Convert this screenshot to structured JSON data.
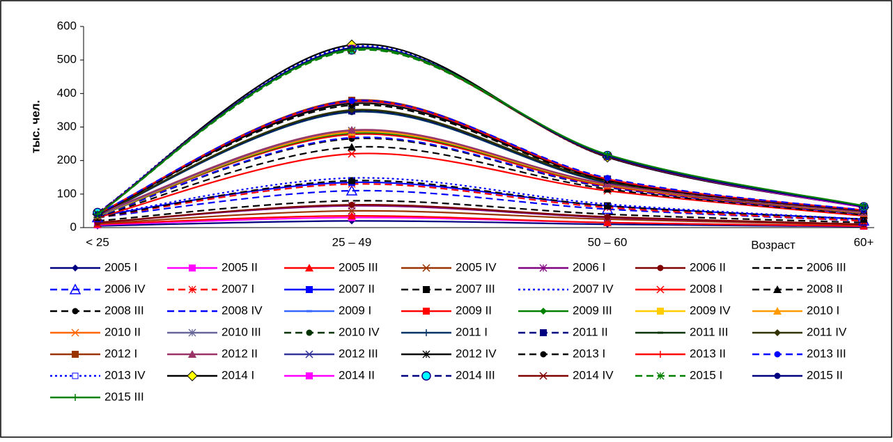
{
  "chart_data": {
    "type": "line",
    "y_label": "тыс. чел.",
    "x_label": "Возраст",
    "categories": [
      "< 25",
      "25 – 49",
      "50 – 60",
      "60+"
    ],
    "ylim": [
      0,
      600
    ],
    "yticks": [
      0,
      100,
      200,
      300,
      400,
      500,
      600
    ],
    "legend": "bottom",
    "series": [
      {
        "name": "2005 I",
        "color": "#000080",
        "dash": "solid",
        "marker": "diamond",
        "values": [
          5,
          20,
          10,
          3
        ]
      },
      {
        "name": "2005 II",
        "color": "#ff00ff",
        "dash": "solid",
        "marker": "square",
        "values": [
          8,
          30,
          15,
          4
        ]
      },
      {
        "name": "2005 III",
        "color": "#ff0000",
        "dash": "solid",
        "marker": "triangle",
        "values": [
          10,
          35,
          15,
          5
        ]
      },
      {
        "name": "2005 IV",
        "color": "#993300",
        "dash": "solid",
        "marker": "x",
        "values": [
          12,
          50,
          25,
          8
        ]
      },
      {
        "name": "2006 I",
        "color": "#800080",
        "dash": "solid",
        "marker": "asterisk",
        "values": [
          15,
          65,
          30,
          10
        ]
      },
      {
        "name": "2006 II",
        "color": "#800000",
        "dash": "solid",
        "marker": "circle",
        "values": [
          15,
          68,
          32,
          10
        ]
      },
      {
        "name": "2006 III",
        "color": "#000000",
        "dash": "dash",
        "marker": "none",
        "values": [
          20,
          80,
          40,
          15
        ]
      },
      {
        "name": "2006 IV",
        "color": "#0000ff",
        "dash": "dash",
        "marker": "triangle-open",
        "values": [
          30,
          110,
          55,
          20
        ]
      },
      {
        "name": "2007 I",
        "color": "#ff0000",
        "dash": "dash",
        "marker": "asterisk",
        "values": [
          30,
          130,
          60,
          20
        ]
      },
      {
        "name": "2007 II",
        "color": "#0000ff",
        "dash": "solid",
        "marker": "square",
        "values": [
          35,
          135,
          65,
          25
        ]
      },
      {
        "name": "2007 III",
        "color": "#000000",
        "dash": "dash",
        "marker": "square",
        "values": [
          30,
          140,
          65,
          25
        ]
      },
      {
        "name": "2007 IV",
        "color": "#0000ff",
        "dash": "dot",
        "marker": "none",
        "values": [
          35,
          148,
          70,
          25
        ]
      },
      {
        "name": "2008 I",
        "color": "#ff0000",
        "dash": "solid",
        "marker": "x",
        "values": [
          30,
          220,
          110,
          35
        ]
      },
      {
        "name": "2008 II",
        "color": "#000000",
        "dash": "dash",
        "marker": "triangle",
        "values": [
          32,
          240,
          115,
          38
        ]
      },
      {
        "name": "2008 III",
        "color": "#000000",
        "dash": "dash",
        "marker": "circle",
        "values": [
          33,
          265,
          120,
          40
        ]
      },
      {
        "name": "2008 IV",
        "color": "#0000ff",
        "dash": "dash",
        "marker": "none",
        "values": [
          33,
          268,
          121,
          40
        ]
      },
      {
        "name": "2009 I",
        "color": "#3366ff",
        "dash": "solid",
        "marker": "dash",
        "values": [
          35,
          280,
          125,
          42
        ]
      },
      {
        "name": "2009 II",
        "color": "#ff0000",
        "dash": "solid",
        "marker": "square",
        "values": [
          35,
          278,
          124,
          42
        ]
      },
      {
        "name": "2009 III",
        "color": "#008000",
        "dash": "solid",
        "marker": "diamond",
        "values": [
          35,
          282,
          127,
          43
        ]
      },
      {
        "name": "2009 IV",
        "color": "#ffcc00",
        "dash": "solid",
        "marker": "square",
        "values": [
          36,
          285,
          128,
          44
        ]
      },
      {
        "name": "2010 I",
        "color": "#ff9900",
        "dash": "solid",
        "marker": "triangle",
        "values": [
          36,
          286,
          128,
          44
        ]
      },
      {
        "name": "2010 II",
        "color": "#ff6600",
        "dash": "solid",
        "marker": "x",
        "values": [
          37,
          288,
          130,
          45
        ]
      },
      {
        "name": "2010 III",
        "color": "#666699",
        "dash": "solid",
        "marker": "asterisk",
        "values": [
          37,
          290,
          130,
          45
        ]
      },
      {
        "name": "2010 IV",
        "color": "#003300",
        "dash": "dash",
        "marker": "circle",
        "values": [
          38,
          345,
          135,
          47
        ]
      },
      {
        "name": "2011 I",
        "color": "#003366",
        "dash": "solid",
        "marker": "plus",
        "values": [
          38,
          346,
          135,
          47
        ]
      },
      {
        "name": "2011 II",
        "color": "#000080",
        "dash": "dash",
        "marker": "square",
        "values": [
          38,
          348,
          136,
          48
        ]
      },
      {
        "name": "2011 III",
        "color": "#003300",
        "dash": "solid",
        "marker": "dash",
        "values": [
          38,
          350,
          137,
          48
        ]
      },
      {
        "name": "2011 IV",
        "color": "#333300",
        "dash": "solid",
        "marker": "diamond",
        "values": [
          38,
          351,
          138,
          48
        ]
      },
      {
        "name": "2012 I",
        "color": "#993300",
        "dash": "solid",
        "marker": "square",
        "values": [
          40,
          380,
          145,
          50
        ]
      },
      {
        "name": "2012 II",
        "color": "#993366",
        "dash": "solid",
        "marker": "triangle",
        "values": [
          40,
          291,
          130,
          45
        ]
      },
      {
        "name": "2012 III",
        "color": "#333399",
        "dash": "solid",
        "marker": "x",
        "values": [
          40,
          375,
          145,
          50
        ]
      },
      {
        "name": "2012 IV",
        "color": "#000000",
        "dash": "solid",
        "marker": "asterisk",
        "values": [
          40,
          370,
          142,
          50
        ]
      },
      {
        "name": "2013 I",
        "color": "#000000",
        "dash": "dash",
        "marker": "circle",
        "values": [
          40,
          365,
          140,
          50
        ]
      },
      {
        "name": "2013 II",
        "color": "#ff0000",
        "dash": "solid",
        "marker": "plus",
        "values": [
          42,
          376,
          145,
          52
        ]
      },
      {
        "name": "2013 III",
        "color": "#0000ff",
        "dash": "dash",
        "marker": "circle",
        "values": [
          42,
          378,
          148,
          52
        ]
      },
      {
        "name": "2013 IV",
        "color": "#0000ff",
        "dash": "dot",
        "marker": "square-open",
        "values": [
          45,
          540,
          210,
          60
        ]
      },
      {
        "name": "2014 I",
        "color": "#000000",
        "dash": "solid",
        "marker": "diamond-yellow",
        "values": [
          40,
          545,
          210,
          60
        ]
      },
      {
        "name": "2014 II",
        "color": "#ff00ff",
        "dash": "solid",
        "marker": "square",
        "values": [
          42,
          535,
          212,
          60
        ]
      },
      {
        "name": "2014 III",
        "color": "#000080",
        "dash": "dash",
        "marker": "circle-cyan",
        "values": [
          45,
          530,
          215,
          62
        ]
      },
      {
        "name": "2014 IV",
        "color": "#800000",
        "dash": "solid",
        "marker": "x",
        "values": [
          42,
          532,
          212,
          62
        ]
      },
      {
        "name": "2015 I",
        "color": "#008000",
        "dash": "dash",
        "marker": "asterisk",
        "values": [
          40,
          528,
          215,
          62
        ]
      },
      {
        "name": "2015 II",
        "color": "#000080",
        "dash": "solid",
        "marker": "circle",
        "values": [
          40,
          536,
          214,
          62
        ]
      },
      {
        "name": "2015 III",
        "color": "#008000",
        "dash": "solid",
        "marker": "plus",
        "values": [
          40,
          532,
          218,
          65
        ]
      }
    ]
  }
}
